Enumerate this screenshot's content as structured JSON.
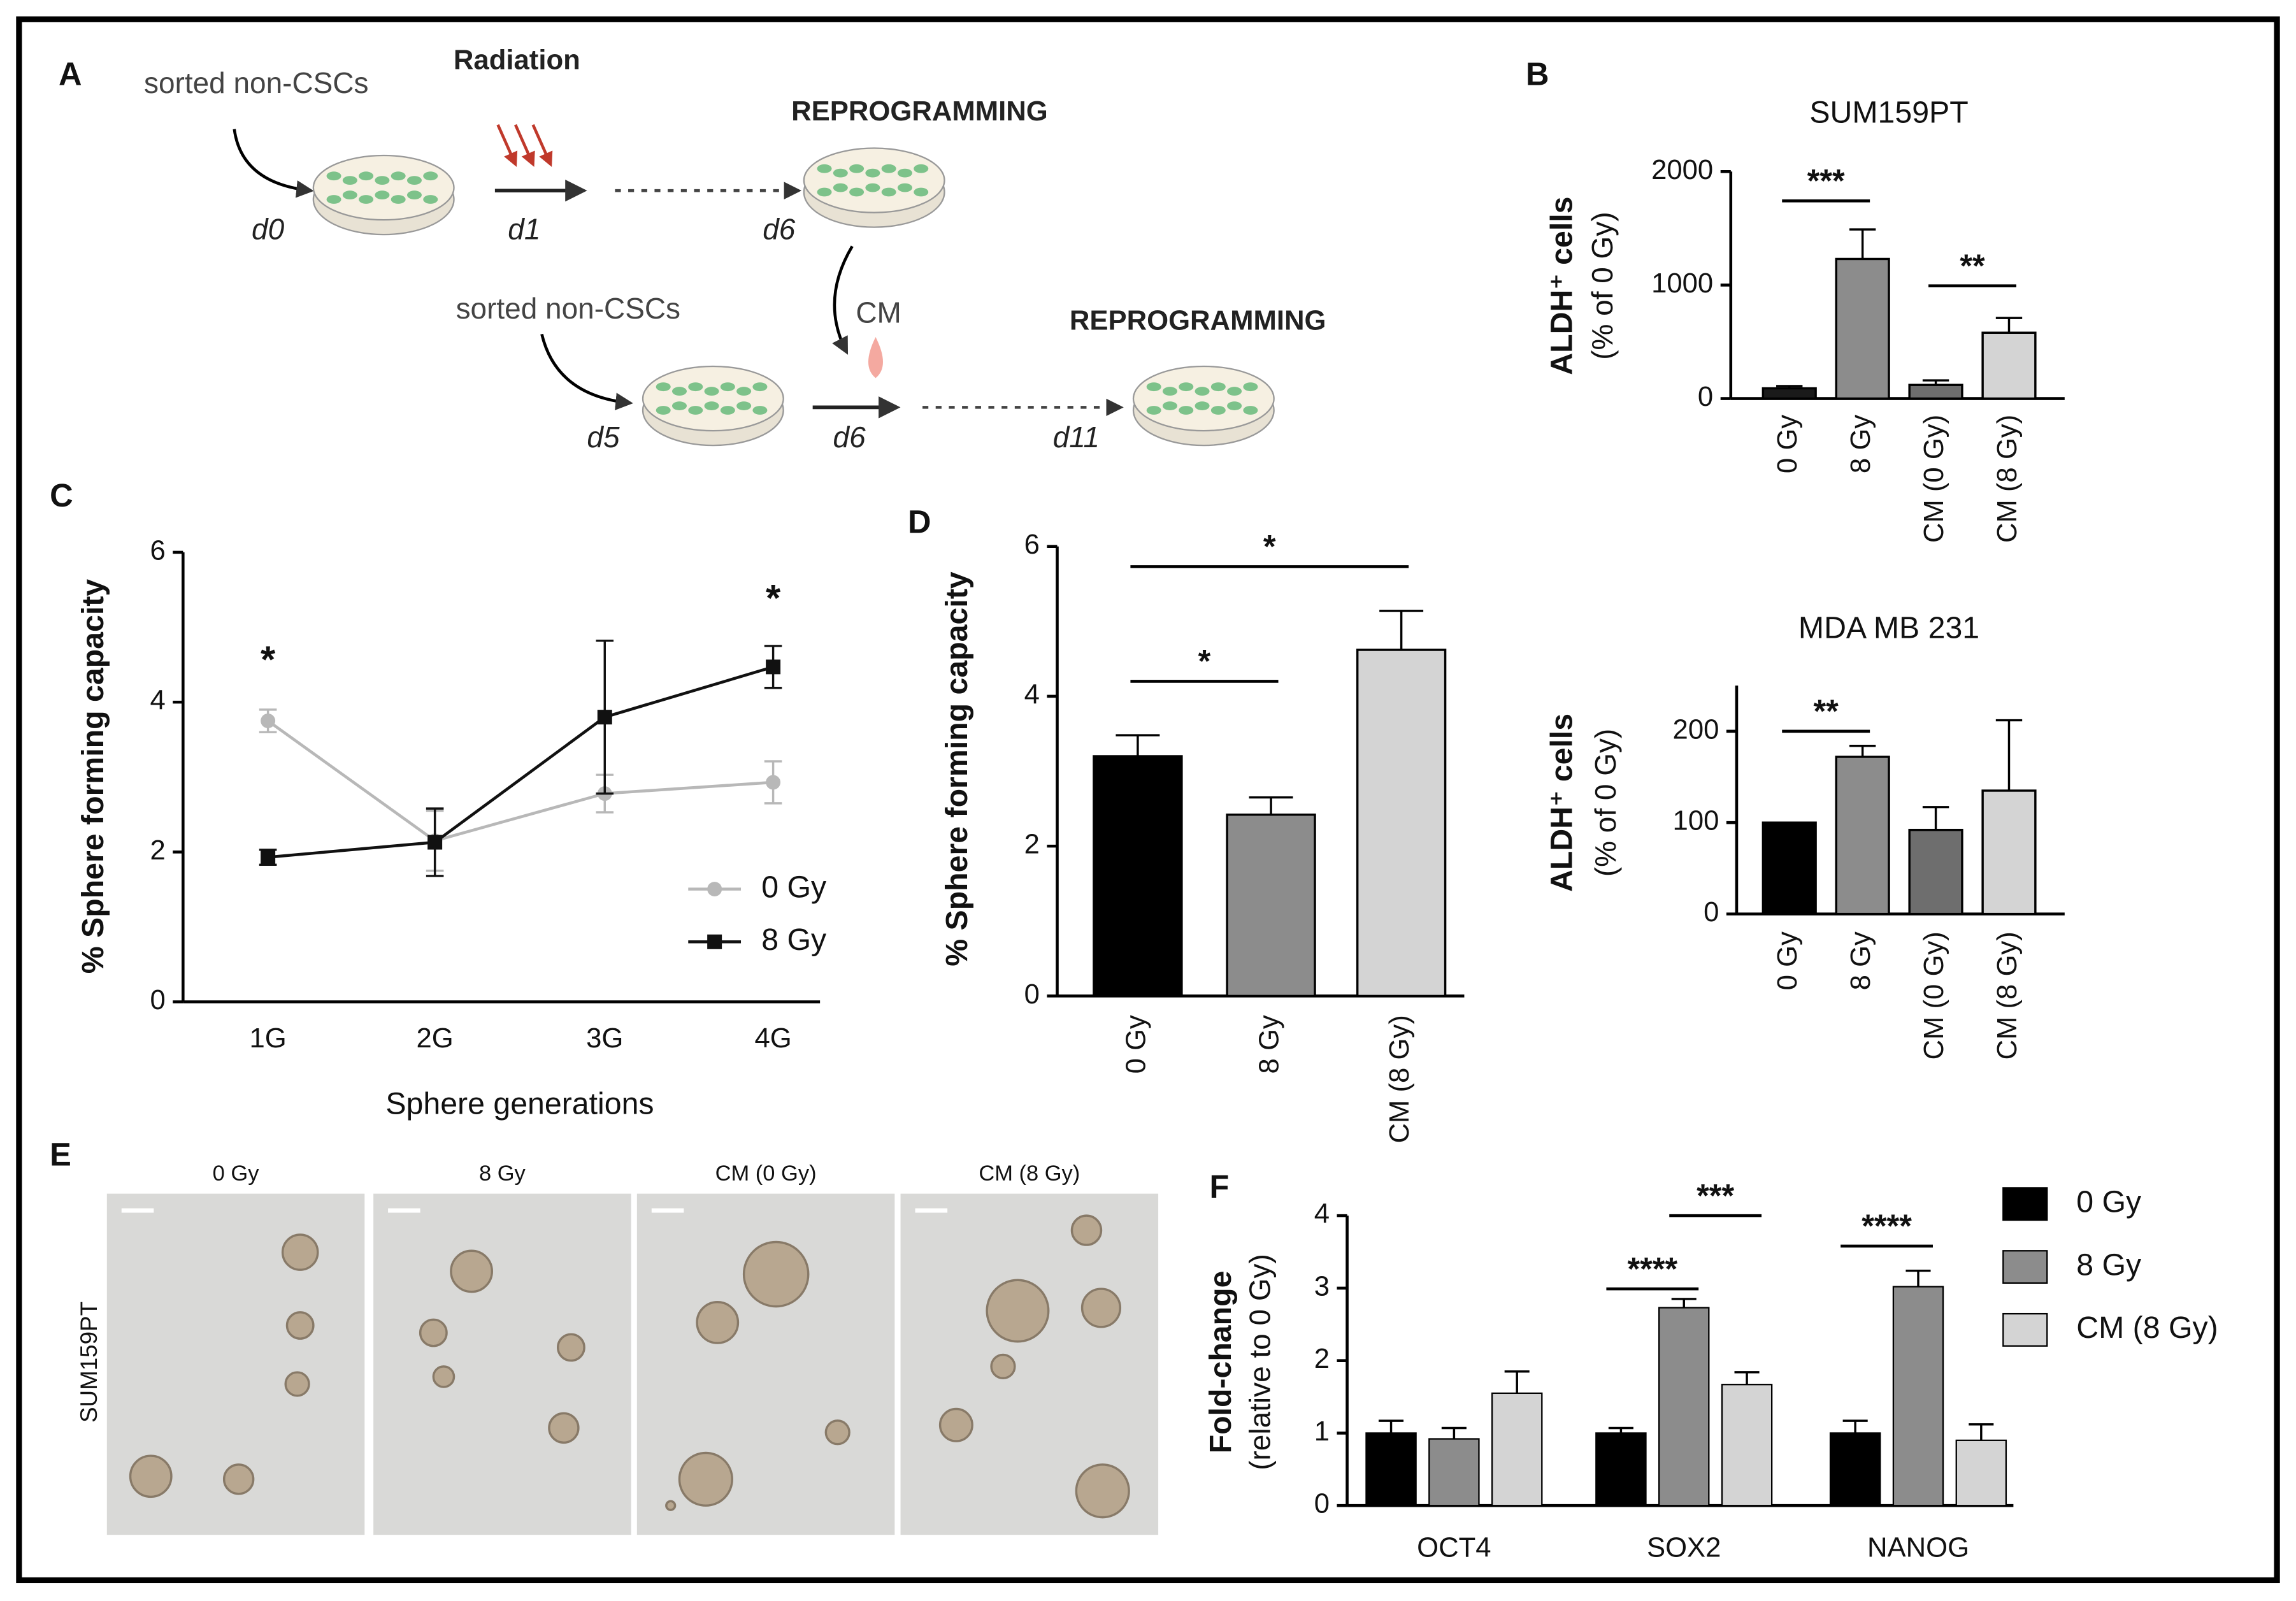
{
  "panel_labels": [
    "A",
    "B",
    "C",
    "D",
    "E",
    "F"
  ],
  "diagram": {
    "labels": [
      "sorted non-CSCs",
      "Radiation",
      "REPROGRAMMING",
      "d0",
      "d1",
      "d6",
      "sorted non-CSCs",
      "CM",
      "REPROGRAMMING",
      "d5",
      "d6",
      "d11"
    ]
  },
  "images": {
    "titles": [
      "0 Gy",
      "8 Gy",
      "CM (0 Gy)",
      "CM (8 Gy)"
    ],
    "row_label": "SUM159PT"
  },
  "chart_data": [
    {
      "type": "bar",
      "title": "SUM159PT",
      "ylabel": [
        "ALDH⁺ cells",
        "(% of 0 Gy)"
      ],
      "categories": [
        "0 Gy",
        "8 Gy",
        "CM (0 Gy)",
        "CM (8 Gy)"
      ],
      "values": [
        90,
        1230,
        120,
        580
      ],
      "errors": [
        20,
        260,
        40,
        130
      ],
      "colors": [
        "#1a1a1a",
        "#8c8c8c",
        "#6e6e6e",
        "#d4d4d4"
      ],
      "ylim": [
        0,
        2000
      ],
      "yticks": [
        0,
        1000,
        2000
      ],
      "annotations": [
        {
          "text": "***"
        },
        {
          "text": "**"
        }
      ]
    },
    {
      "type": "bar",
      "title": "MDA MB 231",
      "ylabel": [
        "ALDH⁺ cells",
        "(% of 0 Gy)"
      ],
      "categories": [
        "0 Gy",
        "8 Gy",
        "CM (0 Gy)",
        "CM (8 Gy)"
      ],
      "values": [
        100,
        172,
        92,
        135
      ],
      "errors": [
        0,
        12,
        25,
        77
      ],
      "colors": [
        "#000000",
        "#8c8c8c",
        "#6e6e6e",
        "#d4d4d4"
      ],
      "ylim": [
        0,
        250
      ],
      "yticks": [
        0,
        100,
        200
      ],
      "annotations": [
        {
          "text": "**"
        }
      ]
    },
    {
      "type": "line",
      "ylabel": "% Sphere forming capacity",
      "xlabel": "Sphere generations",
      "categories": [
        "1G",
        "2G",
        "3G",
        "4G"
      ],
      "ylim": [
        0,
        6
      ],
      "yticks": [
        0,
        2,
        4,
        6
      ],
      "series": [
        {
          "name": "0 Gy",
          "color": "#b8b8b8",
          "marker": "circle",
          "values": [
            3.75,
            2.15,
            2.78,
            2.93
          ],
          "errors": [
            0.15,
            0.4,
            0.25,
            0.28
          ]
        },
        {
          "name": "8 Gy",
          "color": "#111111",
          "marker": "square",
          "values": [
            1.93,
            2.13,
            3.8,
            4.47
          ],
          "errors": [
            0.1,
            0.45,
            1.02,
            0.28
          ]
        }
      ],
      "annotations": [
        {
          "text": "*"
        },
        {
          "text": "*"
        }
      ]
    },
    {
      "type": "bar",
      "ylabel": "% Sphere forming capacity",
      "categories": [
        "0 Gy",
        "8 Gy",
        "CM (8 Gy)"
      ],
      "values": [
        3.2,
        2.42,
        4.62
      ],
      "errors": [
        0.28,
        0.23,
        0.52
      ],
      "colors": [
        "#000000",
        "#8c8c8c",
        "#d4d4d4"
      ],
      "ylim": [
        0,
        6
      ],
      "yticks": [
        0,
        2,
        4,
        6
      ],
      "annotations": [
        {
          "text": "*"
        },
        {
          "text": "*"
        }
      ]
    },
    {
      "type": "grouped-bar",
      "ylabel": [
        "Fold-change",
        "(relative to 0 Gy)"
      ],
      "categories": [
        "OCT4",
        "SOX2",
        "NANOG"
      ],
      "ylim": [
        0,
        4
      ],
      "yticks": [
        0,
        1,
        2,
        3,
        4
      ],
      "series": [
        {
          "name": "0 Gy",
          "color": "#000000",
          "values": [
            1.0,
            1.0,
            1.0
          ],
          "errors": [
            0.17,
            0.07,
            0.17
          ]
        },
        {
          "name": "8 Gy",
          "color": "#8c8c8c",
          "values": [
            0.92,
            2.73,
            3.02
          ],
          "errors": [
            0.15,
            0.12,
            0.22
          ]
        },
        {
          "name": "CM (8 Gy)",
          "color": "#d4d4d4",
          "values": [
            1.55,
            1.67,
            0.9
          ],
          "errors": [
            0.3,
            0.17,
            0.22
          ]
        }
      ],
      "annotations": [
        {
          "text": "****"
        },
        {
          "text": "***"
        },
        {
          "text": "****"
        }
      ]
    }
  ]
}
